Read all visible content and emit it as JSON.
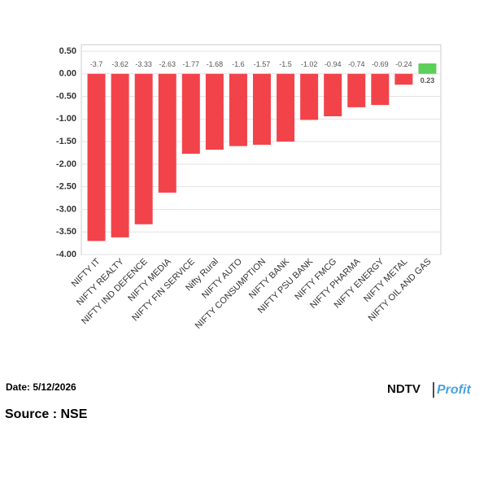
{
  "chart_data": {
    "type": "bar",
    "categories": [
      "NIFTY IT",
      "NIFTY REALTY",
      "NIFTY IND DEFENCE",
      "NIFTY MEDIA",
      "NIFTY FIN SERVICE",
      "Nifty Rural",
      "NIFTY AUTO",
      "NIFTY CONSUMPTION",
      "NIFTY BANK",
      "NIFTY PSU BANK",
      "NIFTY FMCG",
      "NIFTY PHARMA",
      "NIFTY ENERGY",
      "NIFTY METAL",
      "NIFTY OIL AND GAS"
    ],
    "values": [
      -3.7,
      -3.62,
      -3.33,
      -2.63,
      -1.77,
      -1.68,
      -1.6,
      -1.57,
      -1.5,
      -1.02,
      -0.94,
      -0.74,
      -0.69,
      -0.24,
      0.23
    ],
    "negative_color": "#f2434a",
    "positive_color": "#5ccf5a",
    "ylim": [
      -4,
      0.5
    ],
    "yticks": [
      {
        "value": 0.5,
        "label": "0.50"
      },
      {
        "value": 0,
        "label": "0.00"
      },
      {
        "value": -0.5,
        "label": "-0.50"
      },
      {
        "value": -1,
        "label": "-1.00"
      },
      {
        "value": -1.5,
        "label": "-1.50"
      },
      {
        "value": -2,
        "label": "-2.00"
      },
      {
        "value": -2.5,
        "label": "-2.50"
      },
      {
        "value": -3,
        "label": "-3.00"
      },
      {
        "value": -3.5,
        "label": "-3.50"
      },
      {
        "value": -4,
        "label": "-4.00"
      }
    ],
    "grid": true
  },
  "footer": {
    "date": "Date: 5/12/2026",
    "logo_left": "NDTV",
    "logo_right": "Profit",
    "source": "Source : NSE"
  }
}
